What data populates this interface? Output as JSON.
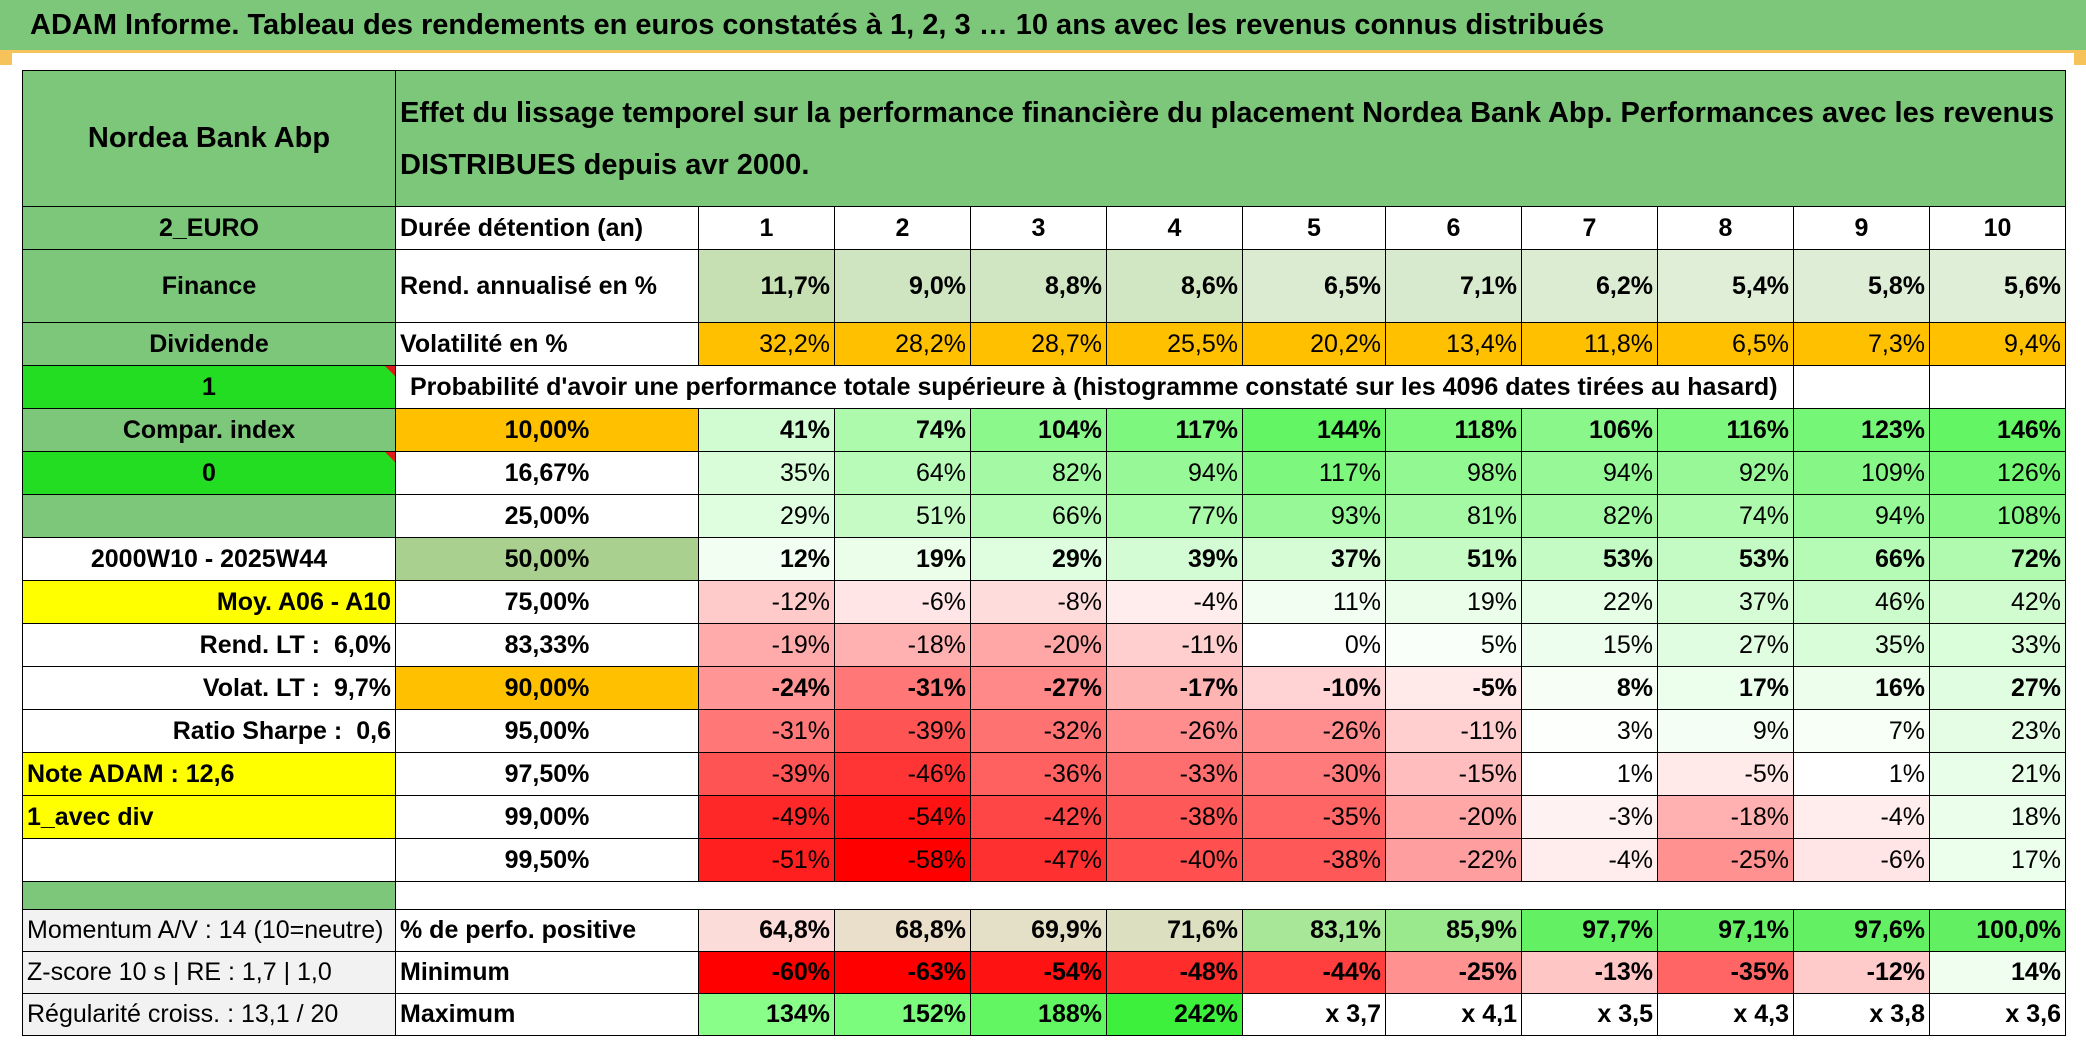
{
  "banner": {
    "title": "ADAM Informe. Tableau des rendements en euros constatés à 1, 2, 3 … 10 ans avec les revenus connus distribués"
  },
  "header": {
    "fund_name": "Nordea Bank Abp",
    "description_line1": "Effet du lissage temporel sur la performance financière du placement Nordea Bank Abp. Performances avec les revenus",
    "description_line2": "DISTRIBUES depuis avr 2000."
  },
  "sidebar": {
    "currency": "2_EURO",
    "sector": "Finance",
    "type": "Dividende",
    "flag1": "1",
    "compar_index": "Compar. index",
    "flag2": "0",
    "period": "2000W10 - 2025W44",
    "moy": "Moy. A06 - A10",
    "rend_lt_label": "Rend. LT :",
    "rend_lt_value": "6,0%",
    "volat_lt_label": "Volat. LT :",
    "volat_lt_value": "9,7%",
    "sharpe_label": "Ratio Sharpe :",
    "sharpe_value": "0,6",
    "note_adam": "Note ADAM : 12,6",
    "avec_div": "1_avec div"
  },
  "table": {
    "duration_label": "Durée détention (an)",
    "years": [
      "1",
      "2",
      "3",
      "4",
      "5",
      "6",
      "7",
      "8",
      "9",
      "10"
    ],
    "rend_label": "Rend. annualisé en %",
    "rend": [
      "11,7%",
      "9,0%",
      "8,8%",
      "8,6%",
      "6,5%",
      "7,1%",
      "6,2%",
      "5,4%",
      "5,8%",
      "5,6%"
    ],
    "vol_label": "Volatilité en %",
    "vol": [
      "32,2%",
      "28,2%",
      "28,7%",
      "25,5%",
      "20,2%",
      "13,4%",
      "11,8%",
      "6,5%",
      "7,3%",
      "9,4%"
    ],
    "prob_label": "Probabilité d'avoir une performance totale supérieure à (histogramme constaté sur les 4096 dates tirées au hasard)",
    "quantiles": [
      {
        "q": "10,00%",
        "v": [
          "41%",
          "74%",
          "104%",
          "117%",
          "144%",
          "118%",
          "106%",
          "116%",
          "123%",
          "146%"
        ]
      },
      {
        "q": "16,67%",
        "v": [
          "35%",
          "64%",
          "82%",
          "94%",
          "117%",
          "98%",
          "94%",
          "92%",
          "109%",
          "126%"
        ]
      },
      {
        "q": "25,00%",
        "v": [
          "29%",
          "51%",
          "66%",
          "77%",
          "93%",
          "81%",
          "82%",
          "74%",
          "94%",
          "108%"
        ]
      },
      {
        "q": "50,00%",
        "v": [
          "12%",
          "19%",
          "29%",
          "39%",
          "37%",
          "51%",
          "53%",
          "53%",
          "66%",
          "72%"
        ]
      },
      {
        "q": "75,00%",
        "v": [
          "-12%",
          "-6%",
          "-8%",
          "-4%",
          "11%",
          "19%",
          "22%",
          "37%",
          "46%",
          "42%"
        ]
      },
      {
        "q": "83,33%",
        "v": [
          "-19%",
          "-18%",
          "-20%",
          "-11%",
          "0%",
          "5%",
          "15%",
          "27%",
          "35%",
          "33%"
        ]
      },
      {
        "q": "90,00%",
        "v": [
          "-24%",
          "-31%",
          "-27%",
          "-17%",
          "-10%",
          "-5%",
          "8%",
          "17%",
          "16%",
          "27%"
        ]
      },
      {
        "q": "95,00%",
        "v": [
          "-31%",
          "-39%",
          "-32%",
          "-26%",
          "-26%",
          "-11%",
          "3%",
          "9%",
          "7%",
          "23%"
        ]
      },
      {
        "q": "97,50%",
        "v": [
          "-39%",
          "-46%",
          "-36%",
          "-33%",
          "-30%",
          "-15%",
          "1%",
          "-5%",
          "1%",
          "21%"
        ]
      },
      {
        "q": "99,00%",
        "v": [
          "-49%",
          "-54%",
          "-42%",
          "-38%",
          "-35%",
          "-20%",
          "-3%",
          "-18%",
          "-4%",
          "18%"
        ]
      },
      {
        "q": "99,50%",
        "v": [
          "-51%",
          "-58%",
          "-47%",
          "-40%",
          "-38%",
          "-22%",
          "-4%",
          "-25%",
          "-6%",
          "17%"
        ]
      }
    ],
    "momentum": "Momentum A/V : 14 (10=neutre)",
    "zscore": "Z-score 10 s | RE : 1,7 | 1,0",
    "regularite": "Régularité croiss. : 13,1 / 20",
    "pos_label": "% de perfo. positive",
    "pos": [
      "64,8%",
      "68,8%",
      "69,9%",
      "71,6%",
      "83,1%",
      "85,9%",
      "97,7%",
      "97,1%",
      "97,6%",
      "100,0%"
    ],
    "min_label": "Minimum",
    "min": [
      "-60%",
      "-63%",
      "-54%",
      "-48%",
      "-44%",
      "-25%",
      "-13%",
      "-35%",
      "-12%",
      "14%"
    ],
    "max_label": "Maximum",
    "max": [
      "134%",
      "152%",
      "188%",
      "242%",
      "x 3,7",
      "x 4,1",
      "x 3,5",
      "x 4,3",
      "x 3,8",
      "x 3,6"
    ]
  }
}
